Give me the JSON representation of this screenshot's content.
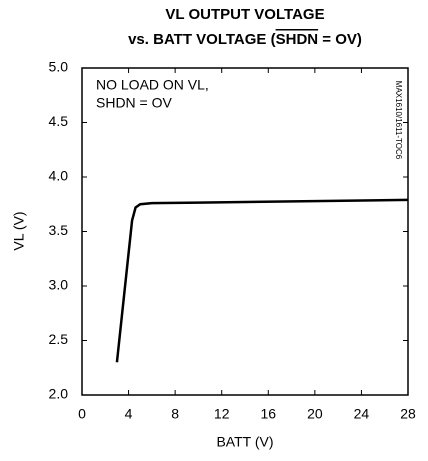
{
  "chart_data": {
    "type": "line",
    "title": "VL OUTPUT VOLTAGE",
    "subtitle": [
      "vs. BATT VOLTAGE (",
      "SHDN",
      " = OV)"
    ],
    "annotations": [
      "NO LOAD ON VL,",
      "SHDN = OV"
    ],
    "side_label": "MAX1610/1611-TOC6",
    "x_label": "BATT (V)",
    "y_label": "VL (V)",
    "series": [
      {
        "color": "#000000",
        "x": [
          3,
          4.3,
          4.6,
          5,
          6,
          10,
          28
        ],
        "values": [
          2.3,
          3.6,
          3.72,
          3.75,
          3.76,
          3.765,
          3.79
        ]
      }
    ],
    "xlim": [
      0,
      28
    ],
    "xticks": [
      0,
      4,
      8,
      12,
      16,
      20,
      24,
      28
    ],
    "ylim": [
      2,
      5
    ],
    "yticks": [
      {
        "value": 2,
        "label": "2.0"
      },
      2.5,
      {
        "value": 3,
        "label": "3.0"
      },
      3.5,
      {
        "value": 4,
        "label": "4.0"
      },
      4.5,
      {
        "value": 5,
        "label": "5.0"
      }
    ],
    "grid": false
  }
}
